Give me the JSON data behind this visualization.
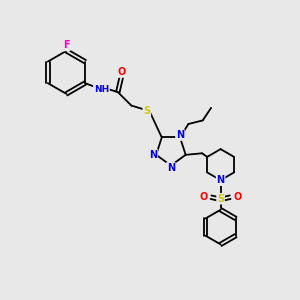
{
  "bg_color": "#e8e8e8",
  "atom_colors": {
    "C": "#000000",
    "N": "#0000ee",
    "O": "#ff0000",
    "S": "#cccc00",
    "F": "#ff00cc",
    "H": "#008080"
  },
  "bond_color": "#000000",
  "lw": 1.3
}
